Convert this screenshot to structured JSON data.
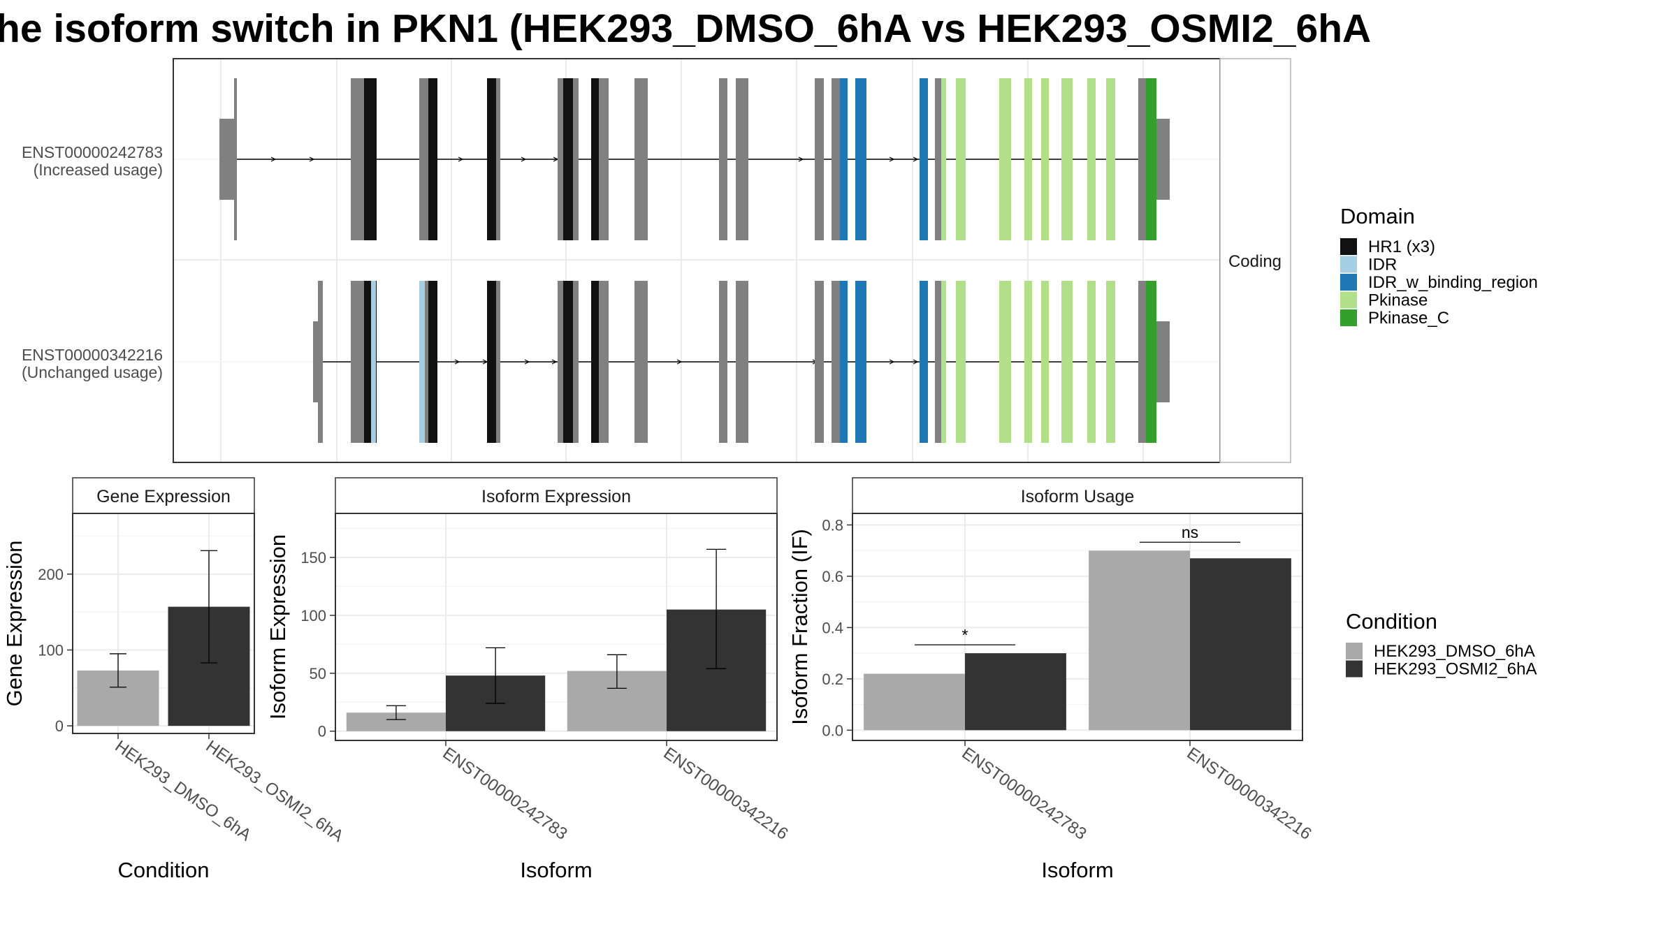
{
  "title": "he isoform switch in PKN1 (HEK293_DMSO_6hA vs HEK293_OSMI2_6hA",
  "colors": {
    "background": "#ffffff",
    "panel_border": "#333333",
    "grid": "#ebebeb",
    "strip_bg": "#ffffff",
    "exon_default": "#808080",
    "intron_line": "#000000"
  },
  "chart_data": [
    {
      "type": "gene-structure",
      "section_label": "Coding",
      "transcripts": [
        {
          "id": "ENST00000242783",
          "label_line1": "ENST00000242783",
          "label_line2": "(Increased usage)"
        },
        {
          "id": "ENST00000342216",
          "label_line1": "ENST00000342216",
          "label_line2": "(Unchanged usage)"
        }
      ],
      "legend": {
        "title": "Domain",
        "entries": [
          {
            "name": "HR1 (x3)",
            "color": "#111111"
          },
          {
            "name": "IDR",
            "color": "#a6cee3"
          },
          {
            "name": "IDR_w_binding_region",
            "color": "#1f78b4"
          },
          {
            "name": "Pkinase",
            "color": "#b2df8a"
          },
          {
            "name": "Pkinase_C",
            "color": "#33a02c"
          }
        ]
      }
    },
    {
      "type": "bar",
      "strip": "Gene Expression",
      "xlabel": "Condition",
      "ylabel": "Gene Expression",
      "ylim": [
        -10,
        280
      ],
      "yticks": [
        0,
        100,
        200
      ],
      "categories": [
        "HEK293_DMSO_6hA",
        "HEK293_OSMI2_6hA"
      ],
      "values": [
        73,
        157
      ],
      "errors": [
        [
          51,
          95
        ],
        [
          83,
          231
        ]
      ],
      "colors": [
        "#a9a9a9",
        "#333333"
      ]
    },
    {
      "type": "bar",
      "strip": "Isoform Expression",
      "xlabel": "Isoform",
      "ylabel": "Isoform Expression",
      "ylim": [
        -8,
        188
      ],
      "yticks": [
        0,
        50,
        100,
        150
      ],
      "categories": [
        "ENST00000242783",
        "ENST00000342216"
      ],
      "series": [
        {
          "name": "HEK293_DMSO_6hA",
          "values": [
            16,
            52
          ],
          "errors": [
            [
              10,
              22
            ],
            [
              37,
              66
            ]
          ]
        },
        {
          "name": "HEK293_OSMI2_6hA",
          "values": [
            48,
            105
          ],
          "errors": [
            [
              24,
              72
            ],
            [
              54,
              157
            ]
          ]
        }
      ]
    },
    {
      "type": "bar",
      "strip": "Isoform Usage",
      "xlabel": "Isoform",
      "ylabel": "Isoform Fraction (IF)",
      "ylim": [
        -0.04,
        0.845
      ],
      "yticks": [
        "0.0",
        "0.2",
        "0.4",
        "0.6",
        "0.8"
      ],
      "categories": [
        "ENST00000242783",
        "ENST00000342216"
      ],
      "series": [
        {
          "name": "HEK293_DMSO_6hA",
          "values": [
            0.22,
            0.7
          ]
        },
        {
          "name": "HEK293_OSMI2_6hA",
          "values": [
            0.3,
            0.67
          ]
        }
      ],
      "significance": [
        "*",
        "ns"
      ]
    }
  ],
  "condition_legend": {
    "title": "Condition",
    "entries": [
      {
        "name": "HEK293_DMSO_6hA",
        "color": "#a9a9a9"
      },
      {
        "name": "HEK293_OSMI2_6hA",
        "color": "#333333"
      }
    ]
  }
}
